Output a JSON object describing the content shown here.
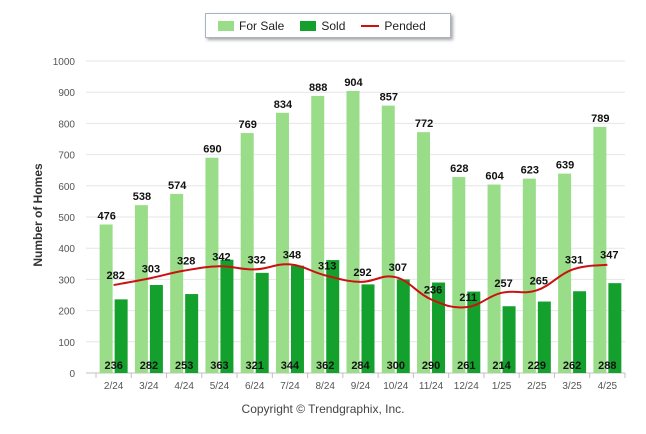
{
  "chart_data": {
    "type": "bar",
    "categories": [
      "2/24",
      "3/24",
      "4/24",
      "5/24",
      "6/24",
      "7/24",
      "8/24",
      "9/24",
      "10/24",
      "11/24",
      "12/24",
      "1/25",
      "2/25",
      "3/25",
      "4/25"
    ],
    "series": [
      {
        "name": "For Sale",
        "type": "bar",
        "color": "#99dd88",
        "values": [
          476,
          538,
          574,
          690,
          769,
          834,
          888,
          904,
          857,
          772,
          628,
          604,
          623,
          639,
          789
        ]
      },
      {
        "name": "Sold",
        "type": "bar",
        "color": "#14a02c",
        "values": [
          236,
          282,
          253,
          363,
          321,
          344,
          362,
          284,
          300,
          290,
          261,
          214,
          229,
          262,
          288
        ]
      },
      {
        "name": "Pended",
        "type": "line",
        "color": "#cc1111",
        "values": [
          282,
          303,
          328,
          342,
          332,
          348,
          313,
          292,
          307,
          236,
          211,
          257,
          265,
          331,
          347
        ]
      }
    ],
    "ylabel": "Number of Homes",
    "ylim": [
      0,
      1000
    ],
    "yticks": [
      0,
      100,
      200,
      300,
      400,
      500,
      600,
      700,
      800,
      900,
      1000
    ],
    "grid": true,
    "legend_position": "top-center"
  },
  "credit": "Copyright © Trendgraphix, Inc."
}
